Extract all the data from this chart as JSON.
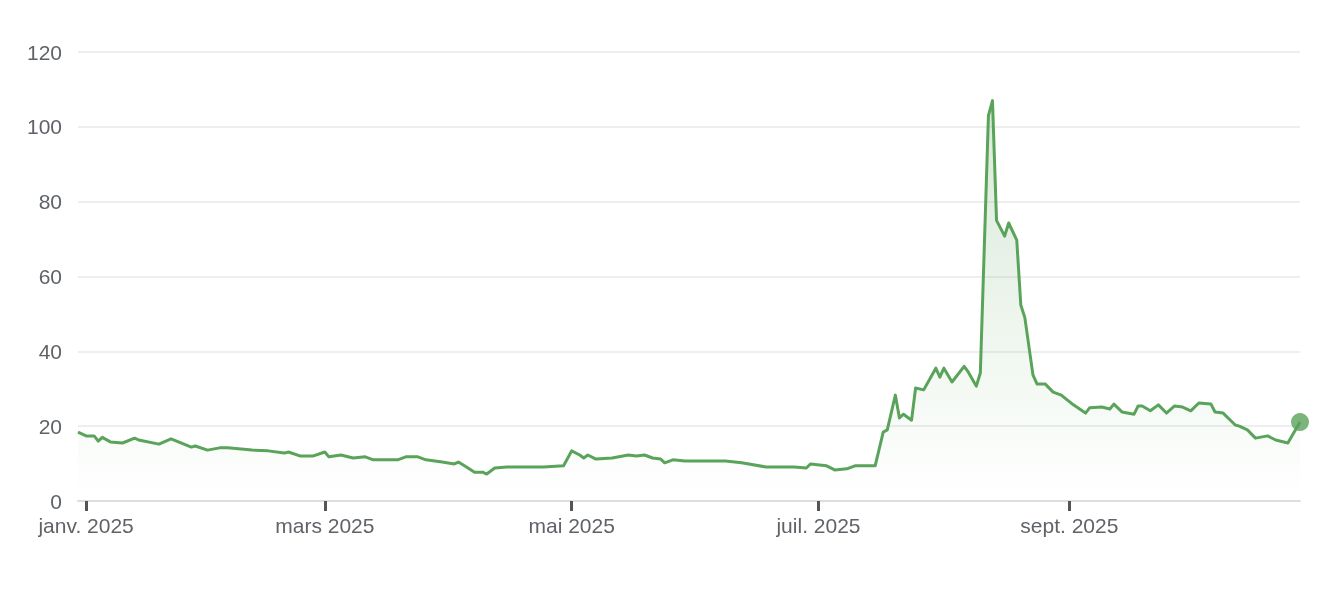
{
  "chart_data": {
    "type": "area",
    "grid": "y",
    "xlim": [
      "2024-12-30",
      "2025-10-28"
    ],
    "xticks": [
      {
        "value": "2025-01-01",
        "label": "janv. 2025"
      },
      {
        "value": "2025-03-01",
        "label": "mars 2025"
      },
      {
        "value": "2025-05-01",
        "label": "mai 2025"
      },
      {
        "value": "2025-07-01",
        "label": "juil. 2025"
      },
      {
        "value": "2025-09-01",
        "label": "sept. 2025"
      }
    ],
    "ylim": [
      0,
      120
    ],
    "yticks": [
      0,
      20,
      40,
      60,
      80,
      100,
      120
    ],
    "series": [
      {
        "color": "#5aa35a",
        "x": [
          "2024-12-30",
          "2025-01-01",
          "2025-01-03",
          "2025-01-04",
          "2025-01-05",
          "2025-01-07",
          "2025-01-10",
          "2025-01-13",
          "2025-01-14",
          "2025-01-19",
          "2025-01-22",
          "2025-01-27",
          "2025-01-28",
          "2025-01-31",
          "2025-02-03",
          "2025-02-05",
          "2025-02-11",
          "2025-02-15",
          "2025-02-19",
          "2025-02-20",
          "2025-02-23",
          "2025-02-26",
          "2025-03-01",
          "2025-03-02",
          "2025-03-05",
          "2025-03-08",
          "2025-03-11",
          "2025-03-13",
          "2025-03-19",
          "2025-03-21",
          "2025-03-24",
          "2025-03-26",
          "2025-03-30",
          "2025-04-02",
          "2025-04-03",
          "2025-04-05",
          "2025-04-07",
          "2025-04-09",
          "2025-04-10",
          "2025-04-12",
          "2025-04-15",
          "2025-04-18",
          "2025-04-24",
          "2025-04-29",
          "2025-05-01",
          "2025-05-03",
          "2025-05-04",
          "2025-05-05",
          "2025-05-07",
          "2025-05-11",
          "2025-05-15",
          "2025-05-17",
          "2025-05-19",
          "2025-05-21",
          "2025-05-23",
          "2025-05-24",
          "2025-05-26",
          "2025-05-29",
          "2025-06-02",
          "2025-06-08",
          "2025-06-12",
          "2025-06-18",
          "2025-06-25",
          "2025-06-28",
          "2025-06-29",
          "2025-07-03",
          "2025-07-05",
          "2025-07-08",
          "2025-07-10",
          "2025-07-15",
          "2025-07-17",
          "2025-07-18",
          "2025-07-20",
          "2025-07-21",
          "2025-07-22",
          "2025-07-24",
          "2025-07-25",
          "2025-07-27",
          "2025-07-30",
          "2025-07-31",
          "2025-08-01",
          "2025-08-03",
          "2025-08-06",
          "2025-08-07",
          "2025-08-09",
          "2025-08-10",
          "2025-08-12",
          "2025-08-13",
          "2025-08-14",
          "2025-08-16",
          "2025-08-17",
          "2025-08-19",
          "2025-08-20",
          "2025-08-21",
          "2025-08-23",
          "2025-08-24",
          "2025-08-26",
          "2025-08-28",
          "2025-08-30",
          "2025-09-02",
          "2025-09-05",
          "2025-09-06",
          "2025-09-09",
          "2025-09-11",
          "2025-09-12",
          "2025-09-14",
          "2025-09-17",
          "2025-09-18",
          "2025-09-19",
          "2025-09-21",
          "2025-09-23",
          "2025-09-25",
          "2025-09-27",
          "2025-09-29",
          "2025-10-01",
          "2025-10-03",
          "2025-10-06",
          "2025-10-07",
          "2025-10-09",
          "2025-10-12",
          "2025-10-13",
          "2025-10-15",
          "2025-10-17",
          "2025-10-20",
          "2025-10-22",
          "2025-10-25",
          "2025-10-28"
        ],
        "values": [
          18.4,
          17.4,
          17.4,
          16,
          17,
          15.8,
          15.5,
          16.8,
          16.3,
          15.2,
          16.6,
          14.4,
          14.7,
          13.6,
          14.2,
          14.2,
          13.6,
          13.4,
          12.8,
          13.1,
          12,
          12,
          13.1,
          11.8,
          12.3,
          11.5,
          11.8,
          11,
          11,
          11.8,
          11.8,
          11,
          10.4,
          9.9,
          10.4,
          9.1,
          7.7,
          7.7,
          7.2,
          8.8,
          9.1,
          9.1,
          9.1,
          9.4,
          13.4,
          12.3,
          11.5,
          12.3,
          11.2,
          11.5,
          12.3,
          12,
          12.3,
          11.5,
          11.2,
          10.2,
          11,
          10.7,
          10.7,
          10.7,
          10.2,
          9.1,
          9.1,
          8.8,
          9.9,
          9.4,
          8.3,
          8.6,
          9.4,
          9.4,
          18.4,
          19,
          28.3,
          22.2,
          23.2,
          21.6,
          30.2,
          29.7,
          35.5,
          33.1,
          35.5,
          31.8,
          36,
          34.5,
          30.7,
          34.2,
          103,
          107,
          75,
          70.8,
          74.3,
          69.7,
          52.4,
          49,
          33.7,
          31.3,
          31.3,
          29.1,
          28.3,
          25.7,
          23.5,
          24.9,
          25.1,
          24.6,
          25.9,
          23.8,
          23.2,
          25.4,
          25.4,
          24.1,
          25.7,
          23.5,
          25.4,
          25.1,
          24.1,
          26.2,
          25.9,
          23.8,
          23.5,
          20.3,
          20,
          19,
          16.8,
          17.4,
          16.3,
          15.5,
          21.1
        ]
      },
      {
        "type": "scatter",
        "color": "#5aa35a",
        "x": [
          "2025-10-28"
        ],
        "values": [
          21.1
        ]
      }
    ]
  }
}
